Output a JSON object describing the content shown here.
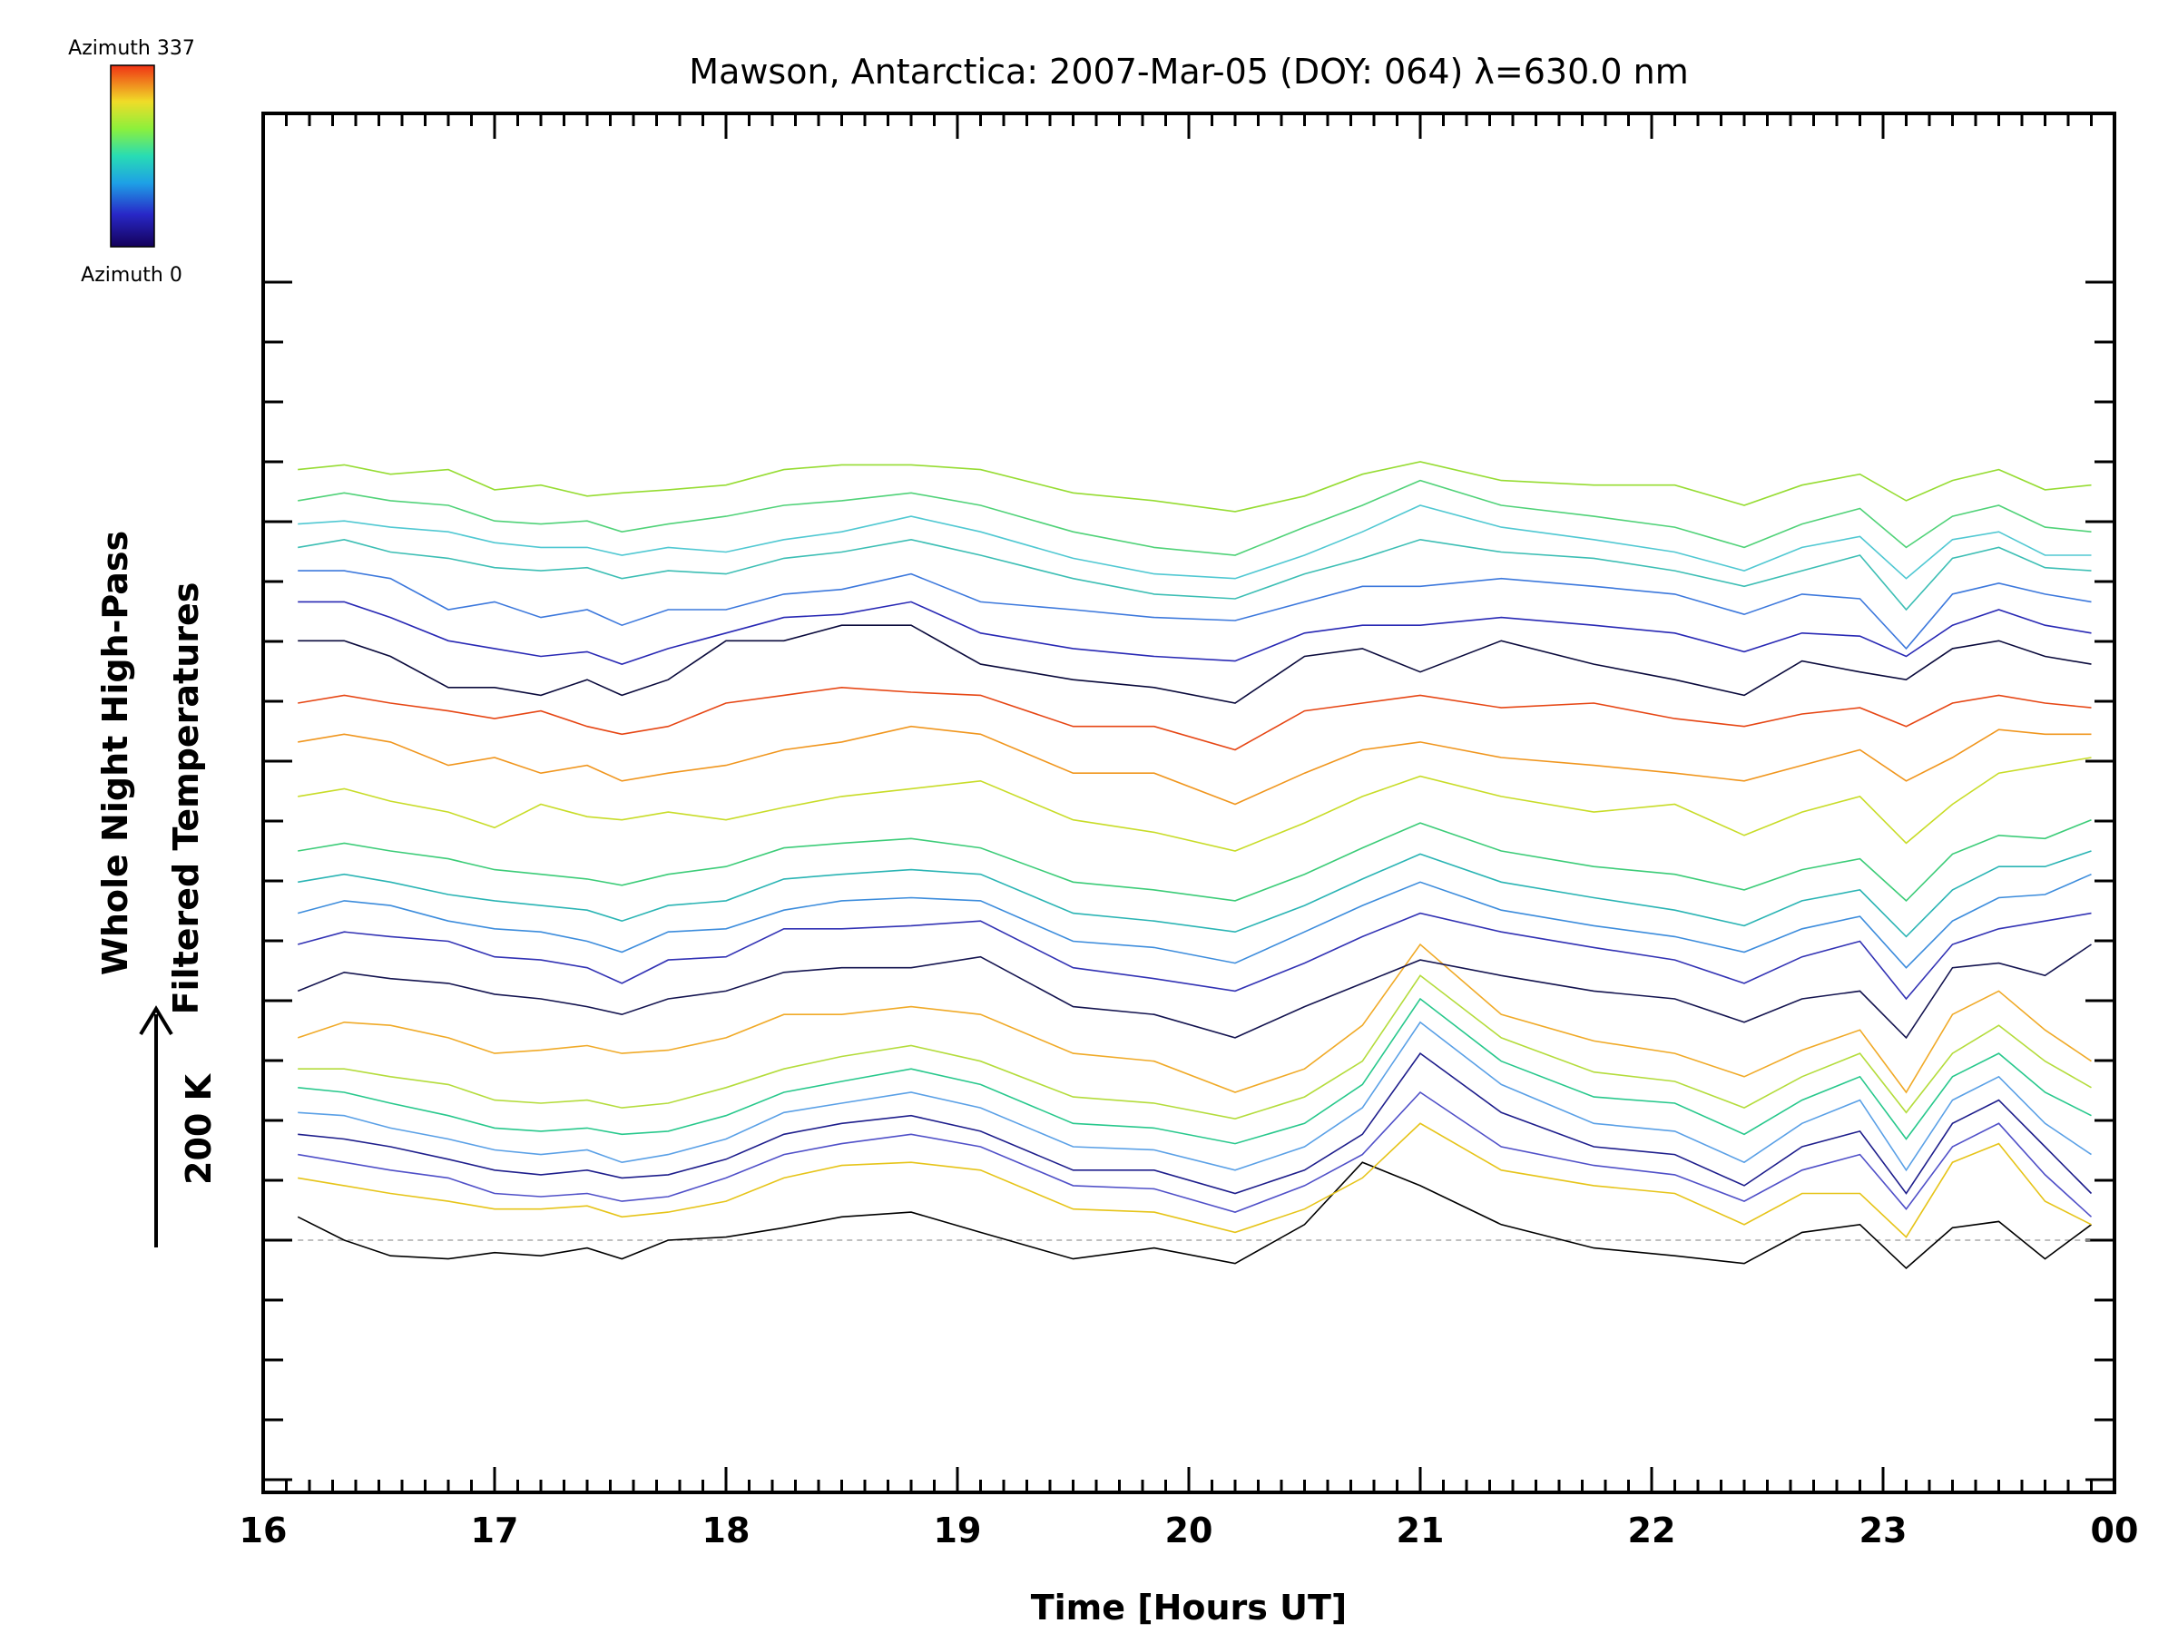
{
  "chart_data": {
    "type": "line",
    "title": "Mawson, Antarctica: 2007-Mar-05 (DOY: 064) λ=630.0 nm",
    "xlabel": "Time [Hours UT]",
    "ylabel_line1": "Whole Night High-Pass",
    "ylabel_line2": "Filtered Temperatures",
    "scale_label": "200 K",
    "x_ticks": [
      "16",
      "17",
      "18",
      "19",
      "20",
      "21",
      "22",
      "23",
      "00"
    ],
    "xlim": [
      16,
      24
    ],
    "colorbar": {
      "top_label": "Azimuth 337",
      "bottom_label": "Azimuth 0"
    },
    "baseline_style": "dashed-gray",
    "x": [
      16.15,
      16.35,
      16.55,
      16.8,
      17.0,
      17.2,
      17.4,
      17.55,
      17.75,
      18.0,
      18.25,
      18.5,
      18.8,
      19.1,
      19.5,
      19.85,
      20.2,
      20.5,
      20.75,
      21.0,
      21.35,
      21.75,
      22.1,
      22.4,
      22.65,
      22.9,
      23.1,
      23.3,
      23.5,
      23.7,
      23.9
    ],
    "series": [
      {
        "color": "#000000",
        "values": [
          0.15,
          0.0,
          -0.1,
          -0.12,
          -0.08,
          -0.1,
          -0.05,
          -0.12,
          0.0,
          0.02,
          0.08,
          0.15,
          0.18,
          0.05,
          -0.12,
          -0.05,
          -0.15,
          0.1,
          0.5,
          0.35,
          0.1,
          -0.05,
          -0.1,
          -0.15,
          0.05,
          0.1,
          -0.18,
          0.08,
          0.12,
          -0.12,
          0.1
        ]
      },
      {
        "color": "#e6c419",
        "values": [
          0.4,
          0.35,
          0.3,
          0.25,
          0.2,
          0.2,
          0.22,
          0.15,
          0.18,
          0.25,
          0.4,
          0.48,
          0.5,
          0.45,
          0.2,
          0.18,
          0.05,
          0.2,
          0.4,
          0.75,
          0.45,
          0.35,
          0.3,
          0.1,
          0.3,
          0.3,
          0.02,
          0.5,
          0.62,
          0.25,
          0.1
        ]
      },
      {
        "color": "#5050c8",
        "values": [
          0.55,
          0.5,
          0.45,
          0.4,
          0.3,
          0.28,
          0.3,
          0.25,
          0.28,
          0.4,
          0.55,
          0.62,
          0.68,
          0.6,
          0.35,
          0.33,
          0.18,
          0.35,
          0.55,
          0.95,
          0.6,
          0.48,
          0.42,
          0.25,
          0.45,
          0.55,
          0.2,
          0.6,
          0.75,
          0.42,
          0.15
        ]
      },
      {
        "color": "#1e1e8c",
        "values": [
          0.68,
          0.65,
          0.6,
          0.52,
          0.45,
          0.42,
          0.45,
          0.4,
          0.42,
          0.52,
          0.68,
          0.75,
          0.8,
          0.7,
          0.45,
          0.45,
          0.3,
          0.45,
          0.68,
          1.2,
          0.82,
          0.6,
          0.55,
          0.35,
          0.6,
          0.7,
          0.3,
          0.75,
          0.9,
          0.6,
          0.3
        ]
      },
      {
        "color": "#5aa0e6",
        "values": [
          0.82,
          0.8,
          0.72,
          0.65,
          0.58,
          0.55,
          0.58,
          0.5,
          0.55,
          0.65,
          0.82,
          0.88,
          0.95,
          0.85,
          0.6,
          0.58,
          0.45,
          0.6,
          0.85,
          1.4,
          1.0,
          0.75,
          0.7,
          0.5,
          0.75,
          0.9,
          0.45,
          0.9,
          1.05,
          0.75,
          0.55
        ]
      },
      {
        "color": "#28c88c",
        "values": [
          0.98,
          0.95,
          0.88,
          0.8,
          0.72,
          0.7,
          0.72,
          0.68,
          0.7,
          0.8,
          0.95,
          1.02,
          1.1,
          1.0,
          0.75,
          0.72,
          0.62,
          0.75,
          1.0,
          1.55,
          1.15,
          0.92,
          0.88,
          0.68,
          0.9,
          1.05,
          0.65,
          1.05,
          1.2,
          0.95,
          0.8
        ]
      },
      {
        "color": "#b4dc3c",
        "values": [
          1.1,
          1.1,
          1.05,
          1.0,
          0.9,
          0.88,
          0.9,
          0.85,
          0.88,
          0.98,
          1.1,
          1.18,
          1.25,
          1.15,
          0.92,
          0.88,
          0.78,
          0.92,
          1.15,
          1.7,
          1.3,
          1.08,
          1.02,
          0.85,
          1.05,
          1.2,
          0.82,
          1.2,
          1.38,
          1.15,
          0.98
        ]
      },
      {
        "color": "#f0aa28",
        "values": [
          1.3,
          1.4,
          1.38,
          1.3,
          1.2,
          1.22,
          1.25,
          1.2,
          1.22,
          1.3,
          1.45,
          1.45,
          1.5,
          1.45,
          1.2,
          1.15,
          0.95,
          1.1,
          1.38,
          1.9,
          1.45,
          1.28,
          1.2,
          1.05,
          1.22,
          1.35,
          0.95,
          1.45,
          1.6,
          1.35,
          1.15
        ]
      },
      {
        "color": "#141450",
        "values": [
          1.6,
          1.72,
          1.68,
          1.65,
          1.58,
          1.55,
          1.5,
          1.45,
          1.55,
          1.6,
          1.72,
          1.75,
          1.75,
          1.82,
          1.5,
          1.45,
          1.3,
          1.5,
          1.65,
          1.8,
          1.7,
          1.6,
          1.55,
          1.4,
          1.55,
          1.6,
          1.3,
          1.75,
          1.78,
          1.7,
          1.9
        ]
      },
      {
        "color": "#3232b4",
        "values": [
          1.9,
          1.98,
          1.95,
          1.92,
          1.82,
          1.8,
          1.75,
          1.65,
          1.8,
          1.82,
          2.0,
          2.0,
          2.02,
          2.05,
          1.75,
          1.68,
          1.6,
          1.78,
          1.95,
          2.1,
          1.98,
          1.88,
          1.8,
          1.65,
          1.82,
          1.92,
          1.55,
          1.9,
          2.0,
          2.05,
          2.1
        ]
      },
      {
        "color": "#3c8cdc",
        "values": [
          2.1,
          2.18,
          2.15,
          2.05,
          2.0,
          1.98,
          1.92,
          1.85,
          1.98,
          2.0,
          2.12,
          2.18,
          2.2,
          2.18,
          1.92,
          1.88,
          1.78,
          1.98,
          2.15,
          2.3,
          2.12,
          2.02,
          1.95,
          1.85,
          2.0,
          2.08,
          1.75,
          2.05,
          2.2,
          2.22,
          2.35
        ]
      },
      {
        "color": "#2ab4b4",
        "values": [
          2.3,
          2.35,
          2.3,
          2.22,
          2.18,
          2.15,
          2.12,
          2.05,
          2.15,
          2.18,
          2.32,
          2.35,
          2.38,
          2.35,
          2.1,
          2.05,
          1.98,
          2.15,
          2.32,
          2.48,
          2.3,
          2.2,
          2.12,
          2.02,
          2.18,
          2.25,
          1.95,
          2.25,
          2.4,
          2.4,
          2.5
        ]
      },
      {
        "color": "#3ccc78",
        "values": [
          2.5,
          2.55,
          2.5,
          2.45,
          2.38,
          2.35,
          2.32,
          2.28,
          2.35,
          2.4,
          2.52,
          2.55,
          2.58,
          2.52,
          2.3,
          2.25,
          2.18,
          2.35,
          2.52,
          2.68,
          2.5,
          2.4,
          2.35,
          2.25,
          2.38,
          2.45,
          2.18,
          2.48,
          2.6,
          2.58,
          2.7
        ]
      },
      {
        "color": "#c8dc28",
        "values": [
          2.85,
          2.9,
          2.82,
          2.75,
          2.65,
          2.8,
          2.72,
          2.7,
          2.75,
          2.7,
          2.78,
          2.85,
          2.9,
          2.95,
          2.7,
          2.62,
          2.5,
          2.68,
          2.85,
          2.98,
          2.85,
          2.75,
          2.8,
          2.6,
          2.75,
          2.85,
          2.55,
          2.8,
          3.0,
          3.05,
          3.1
        ]
      },
      {
        "color": "#f0961e",
        "values": [
          3.2,
          3.25,
          3.2,
          3.05,
          3.1,
          3.0,
          3.05,
          2.95,
          3.0,
          3.05,
          3.15,
          3.2,
          3.3,
          3.25,
          3.0,
          3.0,
          2.8,
          3.0,
          3.15,
          3.2,
          3.1,
          3.05,
          3.0,
          2.95,
          3.05,
          3.15,
          2.95,
          3.1,
          3.28,
          3.25,
          3.25
        ]
      },
      {
        "color": "#e64614",
        "values": [
          3.45,
          3.5,
          3.45,
          3.4,
          3.35,
          3.4,
          3.3,
          3.25,
          3.3,
          3.45,
          3.5,
          3.55,
          3.52,
          3.5,
          3.3,
          3.3,
          3.15,
          3.4,
          3.45,
          3.5,
          3.42,
          3.45,
          3.35,
          3.3,
          3.38,
          3.42,
          3.3,
          3.45,
          3.5,
          3.45,
          3.42
        ]
      },
      {
        "color": "#0a0a3c",
        "values": [
          3.85,
          3.85,
          3.75,
          3.55,
          3.55,
          3.5,
          3.6,
          3.5,
          3.6,
          3.85,
          3.85,
          3.95,
          3.95,
          3.7,
          3.6,
          3.55,
          3.45,
          3.75,
          3.8,
          3.65,
          3.85,
          3.7,
          3.6,
          3.5,
          3.72,
          3.65,
          3.6,
          3.8,
          3.85,
          3.75,
          3.7
        ]
      },
      {
        "color": "#2828b4",
        "values": [
          4.1,
          4.1,
          4.0,
          3.85,
          3.8,
          3.75,
          3.78,
          3.7,
          3.8,
          3.9,
          4.0,
          4.02,
          4.1,
          3.9,
          3.8,
          3.75,
          3.72,
          3.9,
          3.95,
          3.95,
          4.0,
          3.95,
          3.9,
          3.78,
          3.9,
          3.88,
          3.75,
          3.95,
          4.05,
          3.95,
          3.9
        ]
      },
      {
        "color": "#3c78dc",
        "values": [
          4.3,
          4.3,
          4.25,
          4.05,
          4.1,
          4.0,
          4.05,
          3.95,
          4.05,
          4.05,
          4.15,
          4.18,
          4.28,
          4.1,
          4.05,
          4.0,
          3.98,
          4.1,
          4.2,
          4.2,
          4.25,
          4.2,
          4.15,
          4.02,
          4.15,
          4.12,
          3.8,
          4.15,
          4.22,
          4.15,
          4.1
        ]
      },
      {
        "color": "#3cbeb4",
        "values": [
          4.45,
          4.5,
          4.42,
          4.38,
          4.32,
          4.3,
          4.32,
          4.25,
          4.3,
          4.28,
          4.38,
          4.42,
          4.5,
          4.4,
          4.25,
          4.15,
          4.12,
          4.28,
          4.38,
          4.5,
          4.42,
          4.38,
          4.3,
          4.2,
          4.3,
          4.4,
          4.05,
          4.38,
          4.45,
          4.32,
          4.3
        ]
      },
      {
        "color": "#50c8d2",
        "values": [
          4.6,
          4.62,
          4.58,
          4.55,
          4.48,
          4.45,
          4.45,
          4.4,
          4.45,
          4.42,
          4.5,
          4.55,
          4.65,
          4.55,
          4.38,
          4.28,
          4.25,
          4.4,
          4.55,
          4.72,
          4.58,
          4.5,
          4.42,
          4.3,
          4.45,
          4.52,
          4.25,
          4.5,
          4.55,
          4.4,
          4.4
        ]
      },
      {
        "color": "#50d278",
        "values": [
          4.75,
          4.8,
          4.75,
          4.72,
          4.62,
          4.6,
          4.62,
          4.55,
          4.6,
          4.65,
          4.72,
          4.75,
          4.8,
          4.72,
          4.55,
          4.45,
          4.4,
          4.58,
          4.72,
          4.88,
          4.72,
          4.65,
          4.58,
          4.45,
          4.6,
          4.7,
          4.45,
          4.65,
          4.72,
          4.58,
          4.55
        ]
      },
      {
        "color": "#96dc32",
        "values": [
          4.95,
          4.98,
          4.92,
          4.95,
          4.82,
          4.85,
          4.78,
          4.8,
          4.82,
          4.85,
          4.95,
          4.98,
          4.98,
          4.95,
          4.8,
          4.75,
          4.68,
          4.78,
          4.92,
          5.0,
          4.88,
          4.85,
          4.85,
          4.72,
          4.85,
          4.92,
          4.75,
          4.88,
          4.95,
          4.82,
          4.85
        ]
      }
    ]
  }
}
